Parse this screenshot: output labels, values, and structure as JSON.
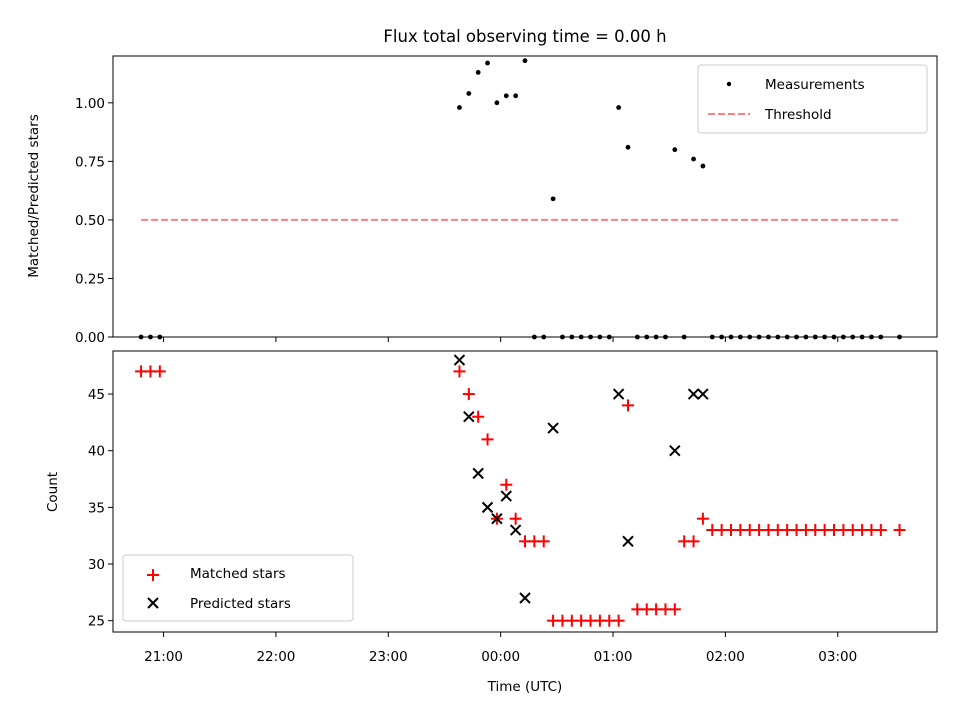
{
  "title": "Flux total observing time = 0.00 h",
  "colors": {
    "measurement": "#000000",
    "threshold": "#ff7f7f",
    "matched": "#ff0000",
    "predicted": "#000000"
  },
  "chart_data": [
    {
      "type": "scatter",
      "ylabel": "Matched/Predicted stars",
      "xlabel": "",
      "xlim": [
        "20:33",
        "03:53"
      ],
      "ylim": [
        0,
        1.2
      ],
      "yticks": [
        0.0,
        0.25,
        0.5,
        0.75,
        1.0
      ],
      "ytick_labels": [
        "0.00",
        "0.25",
        "0.50",
        "0.75",
        "1.00"
      ],
      "legend": {
        "placement": "top-right",
        "entries": [
          "Measurements",
          "Threshold"
        ]
      },
      "threshold": {
        "name": "Threshold",
        "y": 0.5,
        "x_range": [
          "20:48",
          "03:33"
        ]
      },
      "series": [
        {
          "name": "Measurements",
          "x": [
            "20:48",
            "20:53",
            "20:58",
            "23:38",
            "23:43",
            "23:48",
            "23:53",
            "23:58",
            "00:03",
            "00:08",
            "00:13",
            "00:18",
            "00:23",
            "00:28",
            "00:33",
            "00:38",
            "00:43",
            "00:48",
            "00:53",
            "00:58",
            "01:03",
            "01:08",
            "01:13",
            "01:18",
            "01:23",
            "01:28",
            "01:33",
            "01:38",
            "01:43",
            "01:48",
            "01:53",
            "01:58",
            "02:03",
            "02:08",
            "02:13",
            "02:18",
            "02:23",
            "02:28",
            "02:33",
            "02:38",
            "02:43",
            "02:48",
            "02:53",
            "02:58",
            "03:03",
            "03:08",
            "03:13",
            "03:18",
            "03:23",
            "03:33"
          ],
          "y": [
            0,
            0,
            0,
            0.98,
            1.04,
            1.13,
            1.17,
            1.0,
            1.03,
            1.03,
            1.18,
            0,
            0,
            0.59,
            0,
            0,
            0,
            0,
            0,
            0,
            0.98,
            0.81,
            0,
            0,
            0,
            0,
            0.8,
            0,
            0.76,
            0.73,
            0,
            0,
            0,
            0,
            0,
            0,
            0,
            0,
            0,
            0,
            0,
            0,
            0,
            0,
            0,
            0,
            0,
            0,
            0,
            0
          ]
        }
      ]
    },
    {
      "type": "scatter",
      "ylabel": "Count",
      "xlabel": "Time (UTC)",
      "xlim": [
        "20:33",
        "03:53"
      ],
      "ylim": [
        24,
        48.8
      ],
      "yticks": [
        25,
        30,
        35,
        40,
        45
      ],
      "ytick_labels": [
        "25",
        "30",
        "35",
        "40",
        "45"
      ],
      "xticks": [
        "21:00",
        "22:00",
        "23:00",
        "00:00",
        "01:00",
        "02:00",
        "03:00"
      ],
      "xtick_labels": [
        "21:00",
        "22:00",
        "23:00",
        "00:00",
        "01:00",
        "02:00",
        "03:00"
      ],
      "legend": {
        "placement": "bottom-left",
        "entries": [
          "Matched stars",
          "Predicted stars"
        ]
      },
      "series": [
        {
          "name": "Matched stars",
          "x": [
            "20:48",
            "20:53",
            "20:58",
            "23:38",
            "23:43",
            "23:48",
            "23:53",
            "23:58",
            "00:03",
            "00:08",
            "00:13",
            "00:18",
            "00:23",
            "00:28",
            "00:33",
            "00:38",
            "00:43",
            "00:48",
            "00:53",
            "00:58",
            "01:03",
            "01:08",
            "01:13",
            "01:18",
            "01:23",
            "01:28",
            "01:33",
            "01:38",
            "01:43",
            "01:48",
            "01:53",
            "01:58",
            "02:03",
            "02:08",
            "02:13",
            "02:18",
            "02:23",
            "02:28",
            "02:33",
            "02:38",
            "02:43",
            "02:48",
            "02:53",
            "02:58",
            "03:03",
            "03:08",
            "03:13",
            "03:18",
            "03:23",
            "03:33"
          ],
          "y": [
            47,
            47,
            47,
            47,
            45,
            43,
            41,
            34,
            37,
            34,
            32,
            32,
            32,
            25,
            25,
            25,
            25,
            25,
            25,
            25,
            25,
            44,
            26,
            26,
            26,
            26,
            26,
            32,
            32,
            34,
            33,
            33,
            33,
            33,
            33,
            33,
            33,
            33,
            33,
            33,
            33,
            33,
            33,
            33,
            33,
            33,
            33,
            33,
            33,
            33
          ]
        },
        {
          "name": "Predicted stars",
          "x": [
            "23:38",
            "23:43",
            "23:48",
            "23:53",
            "23:58",
            "00:03",
            "00:08",
            "00:13",
            "00:28",
            "01:03",
            "01:08",
            "01:33",
            "01:43",
            "01:48"
          ],
          "y": [
            48,
            43,
            38,
            35,
            34,
            36,
            33,
            27,
            42,
            45,
            32,
            40,
            45,
            45
          ]
        }
      ]
    }
  ]
}
